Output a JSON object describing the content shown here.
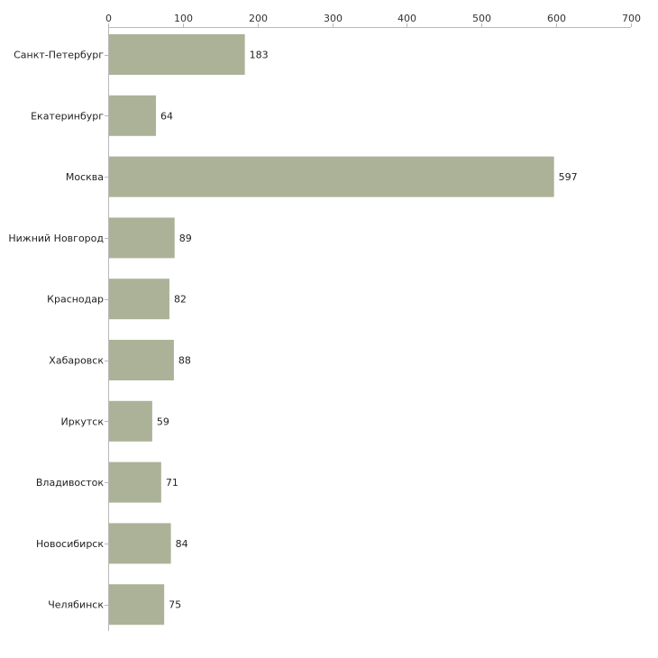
{
  "chart_data": {
    "type": "bar",
    "orientation": "horizontal",
    "title": "",
    "xlabel": "",
    "ylabel": "",
    "categories": [
      "Санкт-Петербург",
      "Екатеринбург",
      "Москва",
      "Нижний Новгород",
      "Краснодар",
      "Хабаровск",
      "Иркутск",
      "Владивосток",
      "Новосибирск",
      "Челябинск"
    ],
    "values": [
      183,
      64,
      597,
      89,
      82,
      88,
      59,
      71,
      84,
      75
    ],
    "xlim": [
      0,
      700
    ],
    "x_ticks": [
      0,
      100,
      200,
      300,
      400,
      500,
      600,
      700
    ],
    "axis_position": "top",
    "grid": false,
    "legend": "none",
    "colors": {
      "bar": "#acb298",
      "axis": "#b8b8b8"
    }
  }
}
